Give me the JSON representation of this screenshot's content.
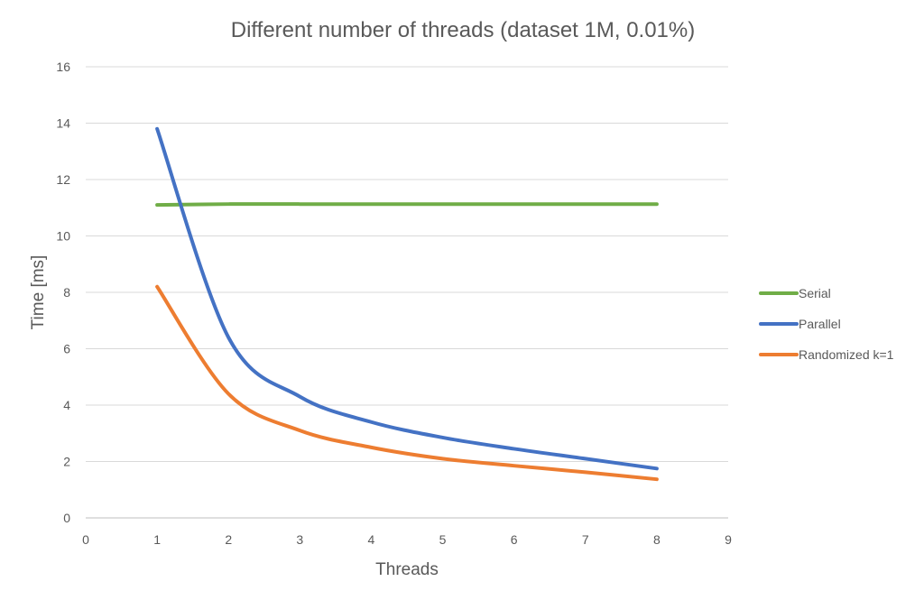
{
  "chart_data": {
    "type": "line",
    "title": "Different number of threads (dataset 1M, 0.01%)",
    "xlabel": "Threads",
    "ylabel": "Time [ms]",
    "xlim": [
      0,
      9
    ],
    "ylim": [
      0,
      16
    ],
    "xticks": [
      0,
      1,
      2,
      3,
      4,
      5,
      6,
      7,
      8,
      9
    ],
    "yticks": [
      0,
      2,
      4,
      6,
      8,
      10,
      12,
      14,
      16
    ],
    "grid": "horizontal",
    "legend": "right",
    "smooth": true,
    "series": [
      {
        "name": "Serial",
        "color": "#70AD47",
        "x": [
          1,
          2,
          3,
          4,
          5,
          6,
          7,
          8
        ],
        "values": [
          11.1,
          11.13,
          11.13,
          11.13,
          11.13,
          11.13,
          11.13,
          11.13
        ]
      },
      {
        "name": "Parallel",
        "color": "#4472C4",
        "x": [
          1,
          2,
          3,
          4,
          5,
          6,
          7,
          8
        ],
        "values": [
          13.8,
          6.4,
          4.3,
          3.4,
          2.85,
          2.45,
          2.1,
          1.75
        ]
      },
      {
        "name": "Randomized k=1",
        "color": "#ED7D31",
        "x": [
          1,
          2,
          3,
          4,
          5,
          6,
          7,
          8
        ],
        "values": [
          8.2,
          4.4,
          3.1,
          2.5,
          2.1,
          1.85,
          1.62,
          1.37
        ]
      }
    ]
  }
}
